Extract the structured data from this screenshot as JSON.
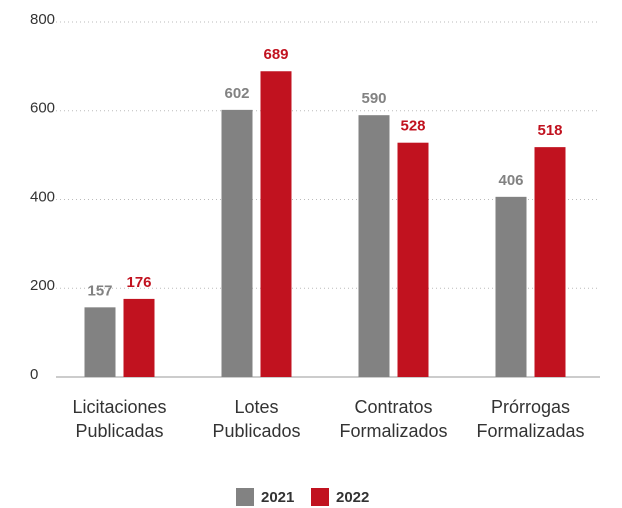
{
  "chart_data": {
    "type": "bar",
    "categories": [
      "Licitaciones Publicadas",
      "Lotes Publicados",
      "Contratos Formalizados",
      "Prórrogas Formalizadas"
    ],
    "series": [
      {
        "name": "2021",
        "color": "#828282",
        "values": [
          157,
          602,
          590,
          406
        ]
      },
      {
        "name": "2022",
        "color": "#c1121f",
        "values": [
          176,
          689,
          528,
          518
        ]
      }
    ],
    "ylim": [
      0,
      800
    ],
    "yticks": [
      0,
      200,
      400,
      600,
      800
    ],
    "grid": true,
    "legend": "bottom"
  }
}
